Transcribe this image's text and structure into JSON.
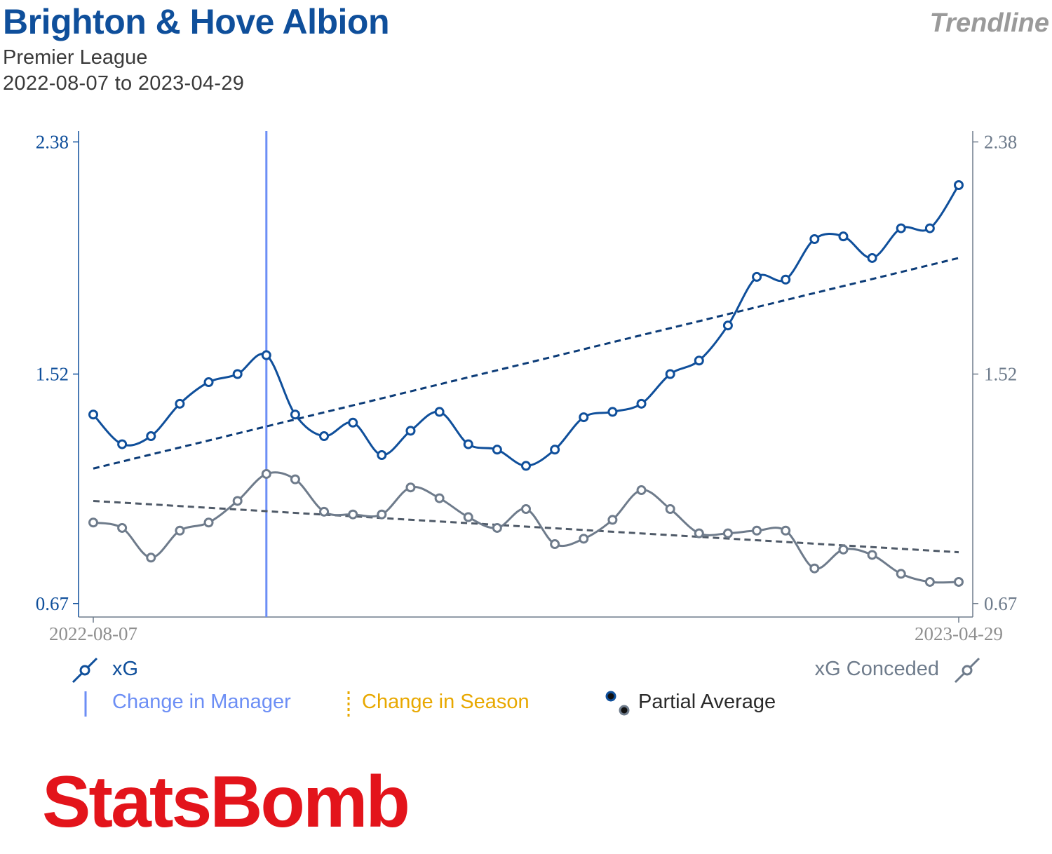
{
  "header": {
    "title": "Brighton & Hove Albion",
    "brand": "Trendline",
    "competition": "Premier League",
    "date_range": "2022-08-07 to 2023-04-29"
  },
  "colors": {
    "xg": "#0f4f9b",
    "xg_conceded": "#6e7b8b",
    "trend_xg": "#0c3c78",
    "trend_xgc": "#4f5a68",
    "manager_change": "#6c8ef5",
    "season_change": "#e8a800",
    "logo": "#e3141b"
  },
  "legend": {
    "xg": "xG",
    "xg_conceded": "xG Conceded",
    "change_manager": "Change in Manager",
    "change_season": "Change in Season",
    "partial_average": "Partial Average"
  },
  "logo": {
    "text": "StatsBomb"
  },
  "chart_data": {
    "type": "line",
    "x_start_label": "2022-08-07",
    "x_end_label": "2023-04-29",
    "y_ticks": [
      "0.67",
      "1.52",
      "2.38"
    ],
    "y_tick_values": [
      0.67,
      1.52,
      2.38
    ],
    "ylim": [
      0.62,
      2.42
    ],
    "grid": false,
    "manager_change_index": 6,
    "series": [
      {
        "name": "xG",
        "color": "#0f4f9b",
        "values": [
          1.37,
          1.26,
          1.29,
          1.41,
          1.49,
          1.52,
          1.59,
          1.37,
          1.29,
          1.34,
          1.22,
          1.31,
          1.38,
          1.26,
          1.24,
          1.18,
          1.24,
          1.36,
          1.38,
          1.41,
          1.52,
          1.57,
          1.7,
          1.88,
          1.87,
          2.02,
          2.03,
          1.95,
          2.06,
          2.06,
          2.22
        ],
        "trend": [
          1.17,
          1.95
        ]
      },
      {
        "name": "xG Conceded",
        "color": "#6e7b8b",
        "values": [
          0.97,
          0.95,
          0.84,
          0.94,
          0.97,
          1.05,
          1.15,
          1.13,
          1.01,
          1.0,
          1.0,
          1.1,
          1.06,
          0.99,
          0.95,
          1.02,
          0.89,
          0.91,
          0.98,
          1.09,
          1.02,
          0.93,
          0.93,
          0.94,
          0.94,
          0.8,
          0.87,
          0.85,
          0.78,
          0.75,
          0.75
        ],
        "trend": [
          1.05,
          0.86
        ]
      }
    ]
  }
}
